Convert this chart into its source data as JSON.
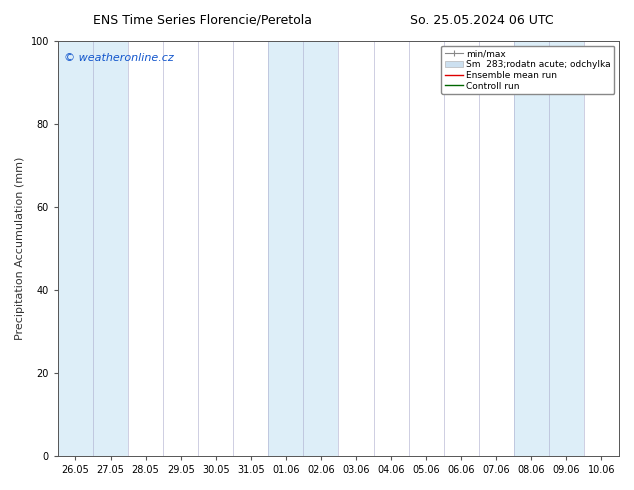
{
  "title_left": "ENS Time Series Florencie/Peretola",
  "title_right": "So. 25.05.2024 06 UTC",
  "ylabel": "Precipitation Accumulation (mm)",
  "ylim": [
    0,
    100
  ],
  "yticks": [
    0,
    20,
    40,
    60,
    80,
    100
  ],
  "x_labels": [
    "26.05",
    "27.05",
    "28.05",
    "29.05",
    "30.05",
    "31.05",
    "01.06",
    "02.06",
    "03.06",
    "04.06",
    "05.06",
    "06.06",
    "07.06",
    "08.06",
    "09.06",
    "10.06"
  ],
  "x_values": [
    0,
    1,
    2,
    3,
    4,
    5,
    6,
    7,
    8,
    9,
    10,
    11,
    12,
    13,
    14,
    15
  ],
  "shaded_columns": [
    0,
    1,
    6,
    7,
    13,
    14
  ],
  "shade_color": "#ddeef8",
  "background_color": "#ffffff",
  "plot_bg_color": "#ffffff",
  "border_color": "#555555",
  "watermark_text": "© weatheronline.cz",
  "watermark_color": "#1155cc",
  "legend_entries": [
    {
      "label": "min/max",
      "color": "#aaaaaa",
      "type": "errorbar"
    },
    {
      "label": "Sm  283;rodatn acute; odchylka",
      "color": "#cce0f0",
      "type": "fill"
    },
    {
      "label": "Ensemble mean run",
      "color": "#dd0000",
      "type": "line"
    },
    {
      "label": "Controll run",
      "color": "#006600",
      "type": "line"
    }
  ],
  "title_fontsize": 9,
  "tick_label_fontsize": 7,
  "ylabel_fontsize": 8,
  "legend_fontsize": 6.5,
  "watermark_fontsize": 8
}
